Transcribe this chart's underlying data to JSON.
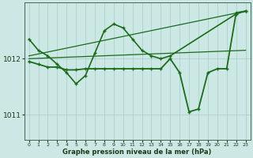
{
  "background_color": "#cce8e4",
  "grid_color": "#aacccc",
  "line_color": "#1a6b1a",
  "marker_color": "#1a6b1a",
  "xlabel": "Graphe pression niveau de la mer (hPa)",
  "ylim": [
    1010.55,
    1013.0
  ],
  "xlim": [
    -0.5,
    23.5
  ],
  "yticks": [
    1011,
    1012
  ],
  "xticks": [
    0,
    1,
    2,
    3,
    4,
    5,
    6,
    7,
    8,
    9,
    10,
    11,
    12,
    13,
    14,
    15,
    16,
    17,
    18,
    19,
    20,
    21,
    22,
    23
  ],
  "series": [
    {
      "x": [
        0,
        23
      ],
      "y": [
        1012.0,
        1012.15
      ],
      "marker": false,
      "linewidth": 0.9
    },
    {
      "x": [
        0,
        23
      ],
      "y": [
        1012.05,
        1012.85
      ],
      "marker": false,
      "linewidth": 0.9
    },
    {
      "x": [
        0,
        1,
        2,
        3,
        4,
        5,
        6,
        7,
        8,
        9,
        10,
        11,
        12,
        13,
        14,
        15,
        22,
        23
      ],
      "y": [
        1012.35,
        1012.15,
        1012.05,
        1011.9,
        1011.75,
        1011.55,
        1011.7,
        1012.1,
        1012.5,
        1012.62,
        1012.55,
        1012.35,
        1012.15,
        1012.05,
        1012.0,
        1012.05,
        1012.8,
        1012.85
      ],
      "marker": true,
      "linewidth": 1.2
    },
    {
      "x": [
        0,
        1,
        2,
        3,
        4,
        5,
        6,
        7,
        8,
        9,
        10,
        11,
        12,
        13,
        14,
        15,
        16,
        17,
        18,
        19,
        20,
        21,
        22,
        23
      ],
      "y": [
        1011.95,
        1011.9,
        1011.85,
        1011.85,
        1011.8,
        1011.8,
        1011.82,
        1011.82,
        1011.82,
        1011.82,
        1011.82,
        1011.82,
        1011.82,
        1011.82,
        1011.82,
        1012.0,
        1011.75,
        1011.05,
        1011.1,
        1011.75,
        1011.82,
        1011.82,
        1012.82,
        1012.85
      ],
      "marker": true,
      "linewidth": 1.3
    }
  ]
}
